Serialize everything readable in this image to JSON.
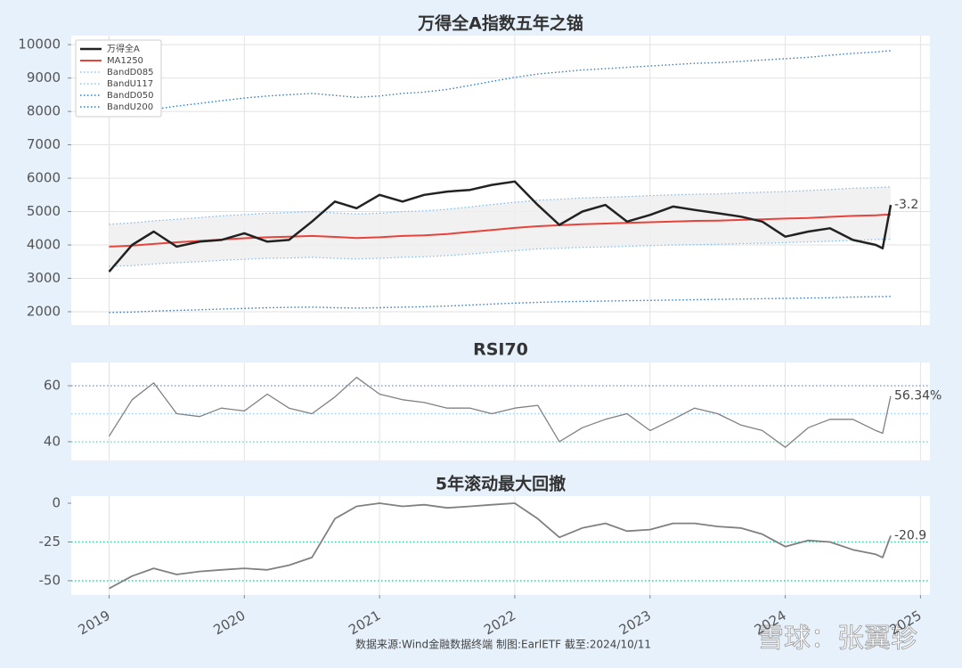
{
  "chart_data": [
    {
      "type": "line",
      "title": "万得全A指数五年之锚",
      "grid": true,
      "legend": "upper left",
      "xlim": [
        2018.72,
        2025.07
      ],
      "ylim": [
        1600,
        10270
      ],
      "yticks": [
        2000,
        3000,
        4000,
        5000,
        6000,
        7000,
        8000,
        9000,
        10000
      ],
      "x": [
        2019.0,
        2019.17,
        2019.33,
        2019.5,
        2019.67,
        2019.83,
        2020.0,
        2020.17,
        2020.33,
        2020.5,
        2020.67,
        2020.83,
        2021.0,
        2021.17,
        2021.33,
        2021.5,
        2021.67,
        2021.83,
        2022.0,
        2022.17,
        2022.33,
        2022.5,
        2022.67,
        2022.83,
        2023.0,
        2023.17,
        2023.33,
        2023.5,
        2023.67,
        2023.83,
        2024.0,
        2024.17,
        2024.33,
        2024.5,
        2024.67,
        2024.72,
        2024.78
      ],
      "fill_between": [
        2,
        3
      ],
      "fill_color": "#eeeeee",
      "annotation": "-3.2",
      "annotation_series": 0,
      "series": [
        {
          "name": "万得全A",
          "color": "#222222",
          "linestyle": "solid",
          "linewidth": 2.5,
          "values": [
            3200,
            4000,
            4400,
            3950,
            4100,
            4150,
            4350,
            4100,
            4150,
            4700,
            5300,
            5100,
            5500,
            5300,
            5500,
            5600,
            5650,
            5800,
            5900,
            5200,
            4600,
            5000,
            5200,
            4700,
            4900,
            5150,
            5050,
            4950,
            4850,
            4700,
            4250,
            4400,
            4500,
            4150,
            4000,
            3900,
            5200
          ]
        },
        {
          "name": "MA1250",
          "color": "#e8433a",
          "linestyle": "solid",
          "linewidth": 2,
          "values": [
            3950,
            3980,
            4030,
            4080,
            4120,
            4160,
            4200,
            4230,
            4250,
            4270,
            4240,
            4210,
            4230,
            4270,
            4290,
            4330,
            4390,
            4450,
            4510,
            4560,
            4590,
            4620,
            4640,
            4660,
            4680,
            4700,
            4720,
            4730,
            4750,
            4770,
            4790,
            4810,
            4840,
            4870,
            4890,
            4900,
            4910
          ]
        },
        {
          "name": "BandD085",
          "color": "#7fb8e6",
          "linestyle": "dotted",
          "linewidth": 1.2,
          "values": [
            3360,
            3380,
            3430,
            3470,
            3500,
            3540,
            3570,
            3600,
            3610,
            3630,
            3600,
            3580,
            3600,
            3630,
            3650,
            3680,
            3730,
            3780,
            3830,
            3880,
            3900,
            3930,
            3940,
            3960,
            3980,
            4000,
            4010,
            4020,
            4040,
            4050,
            4070,
            4090,
            4110,
            4140,
            4160,
            4170,
            4170
          ]
        },
        {
          "name": "BandU117",
          "color": "#7fb8e6",
          "linestyle": "dotted",
          "linewidth": 1.2,
          "values": [
            4620,
            4660,
            4720,
            4770,
            4820,
            4870,
            4910,
            4950,
            4970,
            5000,
            4960,
            4930,
            4950,
            5000,
            5020,
            5070,
            5140,
            5210,
            5280,
            5340,
            5370,
            5410,
            5430,
            5450,
            5480,
            5500,
            5520,
            5530,
            5560,
            5580,
            5600,
            5630,
            5660,
            5700,
            5720,
            5730,
            5740
          ]
        },
        {
          "name": "BandD050",
          "color": "#2a7fc9",
          "linestyle": "dotted",
          "linewidth": 1.4,
          "values": [
            1980,
            1990,
            2020,
            2040,
            2060,
            2080,
            2100,
            2120,
            2130,
            2140,
            2120,
            2110,
            2120,
            2140,
            2150,
            2170,
            2200,
            2230,
            2260,
            2280,
            2300,
            2310,
            2320,
            2330,
            2340,
            2350,
            2360,
            2370,
            2380,
            2390,
            2400,
            2410,
            2420,
            2440,
            2450,
            2450,
            2460
          ]
        },
        {
          "name": "BandU200",
          "color": "#2a7fc9",
          "linestyle": "dotted",
          "linewidth": 1.4,
          "values": [
            7900,
            7960,
            8060,
            8160,
            8240,
            8320,
            8400,
            8460,
            8500,
            8540,
            8480,
            8420,
            8460,
            8540,
            8580,
            8660,
            8780,
            8900,
            9020,
            9120,
            9180,
            9240,
            9280,
            9320,
            9360,
            9400,
            9440,
            9460,
            9500,
            9540,
            9580,
            9620,
            9680,
            9740,
            9780,
            9800,
            9820
          ]
        }
      ]
    },
    {
      "type": "line",
      "title": "RSI70",
      "grid": true,
      "xlim": [
        2018.72,
        2025.07
      ],
      "ylim": [
        33.3,
        68.3
      ],
      "yticks": [
        40,
        60
      ],
      "hlines": [
        {
          "value": 60,
          "color": "#8aa0c8"
        },
        {
          "value": 50,
          "color": "#9fd0f0"
        },
        {
          "value": 40,
          "color": "#7fd6b8"
        }
      ],
      "x": [
        2019.0,
        2019.17,
        2019.33,
        2019.5,
        2019.67,
        2019.83,
        2020.0,
        2020.17,
        2020.33,
        2020.5,
        2020.67,
        2020.83,
        2021.0,
        2021.17,
        2021.33,
        2021.5,
        2021.67,
        2021.83,
        2022.0,
        2022.17,
        2022.33,
        2022.5,
        2022.67,
        2022.83,
        2023.0,
        2023.17,
        2023.33,
        2023.5,
        2023.67,
        2023.83,
        2024.0,
        2024.17,
        2024.33,
        2024.5,
        2024.67,
        2024.72,
        2024.78
      ],
      "annotation": "56.34%",
      "annotation_series": 0,
      "series": [
        {
          "name": "RSI70",
          "color": "#808080",
          "linestyle": "solid",
          "linewidth": 1.3,
          "values": [
            42,
            55,
            61,
            50,
            49,
            52,
            51,
            57,
            52,
            50,
            56,
            63,
            57,
            55,
            54,
            52,
            52,
            50,
            52,
            53,
            40,
            45,
            48,
            50,
            44,
            48,
            52,
            50,
            46,
            44,
            38,
            45,
            48,
            48,
            44,
            43,
            56.34
          ]
        }
      ]
    },
    {
      "type": "line",
      "title": "5年滚动最大回撤",
      "grid": true,
      "xlim": [
        2018.72,
        2025.07
      ],
      "ylim": [
        -59.2,
        4.6
      ],
      "yticks": [
        -50,
        -25,
        0
      ],
      "xticks": [
        2019,
        2020,
        2021,
        2022,
        2023,
        2024,
        2025
      ],
      "hlines": [
        {
          "value": -25,
          "color": "#3cc9a0"
        },
        {
          "value": -50,
          "color": "#3cc9a0"
        }
      ],
      "x": [
        2019.0,
        2019.17,
        2019.33,
        2019.5,
        2019.67,
        2019.83,
        2020.0,
        2020.17,
        2020.33,
        2020.5,
        2020.67,
        2020.83,
        2021.0,
        2021.17,
        2021.33,
        2021.5,
        2021.67,
        2021.83,
        2022.0,
        2022.17,
        2022.33,
        2022.5,
        2022.67,
        2022.83,
        2023.0,
        2023.17,
        2023.33,
        2023.5,
        2023.67,
        2023.83,
        2024.0,
        2024.17,
        2024.33,
        2024.5,
        2024.67,
        2024.72,
        2024.78
      ],
      "annotation": "-20.9",
      "annotation_series": 0,
      "series": [
        {
          "name": "回撤",
          "color": "#808080",
          "linestyle": "solid",
          "linewidth": 1.8,
          "values": [
            -55,
            -47,
            -42,
            -46,
            -44,
            -43,
            -42,
            -43,
            -40,
            -35,
            -10,
            -2,
            0,
            -2,
            -1,
            -3,
            -2,
            -1,
            0,
            -10,
            -22,
            -16,
            -13,
            -18,
            -17,
            -13,
            -13,
            -15,
            -16,
            -20,
            -28,
            -24,
            -25,
            -30,
            -33,
            -35,
            -20.9
          ]
        }
      ]
    }
  ],
  "footer": "数据来源:Wind金融数据终端  制图:EarlETF 截至:2024/10/11",
  "watermark": "雪球：张翼轸"
}
